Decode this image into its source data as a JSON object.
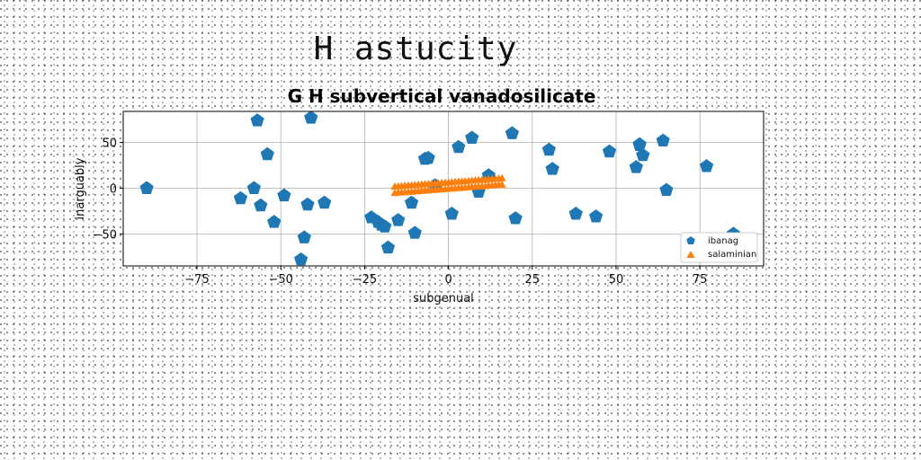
{
  "figure_title": "H astucity",
  "chart_data": {
    "type": "scatter",
    "title": "G H subvertical vanadosilicate",
    "xlabel": "subgenual",
    "ylabel": "inarguably",
    "xlim": [
      -97,
      94
    ],
    "ylim": [
      -85,
      84
    ],
    "xticks": [
      -75,
      -50,
      -25,
      0,
      25,
      50,
      75
    ],
    "yticks": [
      -50,
      0,
      50
    ],
    "grid": true,
    "legend_placement": "lower right",
    "colors": {
      "ibanag": "#1f77b4",
      "salaminian": "#ff7f0e"
    },
    "series": [
      {
        "name": "ibanag",
        "marker": "pentagon",
        "x": [
          -90,
          -62,
          -58,
          -57,
          -56,
          -54,
          -52,
          -49,
          -44,
          -43,
          -42,
          -41,
          -37,
          -23,
          -21,
          -20,
          -19,
          -18,
          -15,
          -11,
          -10,
          -7,
          -6,
          -4,
          1,
          3,
          7,
          9,
          12,
          19,
          20,
          30,
          31,
          38,
          44,
          48,
          56,
          57,
          57,
          58,
          64,
          65,
          77,
          85
        ],
        "y": [
          0,
          -11,
          0,
          74,
          -19,
          37,
          -37,
          -8,
          -78,
          -54,
          -18,
          77,
          -16,
          -32,
          -37,
          -40,
          -42,
          -65,
          -35,
          -16,
          -49,
          32,
          33,
          3,
          -28,
          45,
          55,
          -4,
          14,
          60,
          -33,
          42,
          21,
          -28,
          -31,
          40,
          23,
          47,
          48,
          36,
          52,
          -2,
          24,
          -50
        ]
      },
      {
        "name": "salaminian",
        "marker": "triangle",
        "x": [
          -16.0,
          -15.0,
          -14.0,
          -13.0,
          -12.0,
          -11.0,
          -10.0,
          -9.0,
          -8.0,
          -7.0,
          -6.0,
          -5.0,
          -4.0,
          -3.0,
          -2.0,
          -1.0,
          0.0,
          1.0,
          2.0,
          3.0,
          4.0,
          5.0,
          6.0,
          7.0,
          8.0,
          9.0,
          10.0,
          11.0,
          12.0,
          13.0,
          14.0,
          15.0,
          16.0,
          -16.0,
          -15.0,
          -14.0,
          -13.0,
          -12.0,
          -11.0,
          -10.0,
          -9.0,
          -8.0,
          -7.0,
          -6.0,
          -5.0,
          -4.0,
          -3.0,
          -2.0,
          -1.0,
          0.0,
          1.0,
          2.0,
          3.0,
          4.0,
          5.0,
          6.0,
          7.0,
          8.0,
          9.0,
          10.0,
          11.0,
          12.0,
          13.0,
          14.0,
          15.0,
          16.0
        ],
        "y": [
          -5.5,
          -5.2,
          -4.9,
          -4.6,
          -4.4,
          -4.1,
          -3.8,
          -3.5,
          -3.2,
          -3.0,
          -2.7,
          -2.4,
          -2.1,
          -1.8,
          -1.5,
          -1.3,
          -1.0,
          -0.7,
          -0.4,
          -0.1,
          0.1,
          0.4,
          0.7,
          1.0,
          1.3,
          1.6,
          1.8,
          2.1,
          2.4,
          2.7,
          3.0,
          3.3,
          3.5,
          1.5,
          1.8,
          2.1,
          2.4,
          2.6,
          2.9,
          3.2,
          3.5,
          3.8,
          4.0,
          4.3,
          4.6,
          4.9,
          5.2,
          5.5,
          5.7,
          6.0,
          6.3,
          6.6,
          6.9,
          7.1,
          7.4,
          7.7,
          8.0,
          8.3,
          8.5,
          8.8,
          9.1,
          9.4,
          9.7,
          10.0,
          10.2,
          10.5
        ]
      }
    ]
  }
}
